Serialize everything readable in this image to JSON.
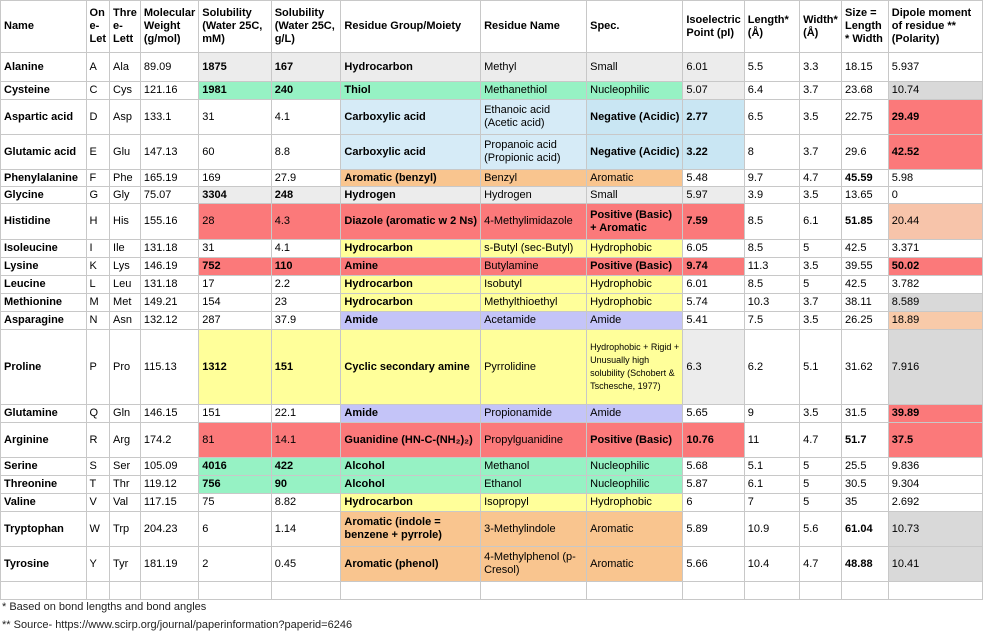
{
  "headers": [
    "Name",
    "On e-Let",
    "Thre e-Lett",
    "Molecular Weight (g/mol)",
    "Solubility (Water 25C, mM)",
    "Solubility (Water 25C, g/L)",
    "Residue Group/Moiety",
    "Residue Name",
    "Spec.",
    "Isoelectric Point (pI)",
    "Length* (Å)",
    "Width* (Å)",
    "Size = Length * Width",
    "Dipole moment of residue ** (Polarity)"
  ],
  "rows": [
    {
      "name": "Alanine",
      "one": "A",
      "three": "Ala",
      "mw": "89.09",
      "sol_mm": "1875",
      "sol_gl": "167",
      "group": "Hydrocarbon",
      "residue": "Methyl",
      "spec": "Small",
      "pi": "6.01",
      "len": "5.5",
      "wid": "3.3",
      "size": "18.15",
      "dipole": "5.937"
    },
    {
      "name": "Cysteine",
      "one": "C",
      "three": "Cys",
      "mw": "121.16",
      "sol_mm": "1981",
      "sol_gl": "240",
      "group": "Thiol",
      "residue": "Methanethiol",
      "spec": "Nucleophilic",
      "pi": "5.07",
      "len": "6.4",
      "wid": "3.7",
      "size": "23.68",
      "dipole": "10.74"
    },
    {
      "name": "Aspartic acid",
      "one": "D",
      "three": "Asp",
      "mw": "133.1",
      "sol_mm": "31",
      "sol_gl": "4.1",
      "group": "Carboxylic acid",
      "residue": "Ethanoic acid (Acetic acid)",
      "spec": "Negative (Acidic)",
      "pi": "2.77",
      "len": "6.5",
      "wid": "3.5",
      "size": "22.75",
      "dipole": "29.49"
    },
    {
      "name": "Glutamic acid",
      "one": "E",
      "three": "Glu",
      "mw": "147.13",
      "sol_mm": "60",
      "sol_gl": "8.8",
      "group": "Carboxylic acid",
      "residue": "Propanoic acid (Propionic acid)",
      "spec": "Negative (Acidic)",
      "pi": "3.22",
      "len": "8",
      "wid": "3.7",
      "size": "29.6",
      "dipole": "42.52"
    },
    {
      "name": "Phenylalanine",
      "one": "F",
      "three": "Phe",
      "mw": "165.19",
      "sol_mm": "169",
      "sol_gl": "27.9",
      "group": "Aromatic (benzyl)",
      "residue": "Benzyl",
      "spec": "Aromatic",
      "pi": "5.48",
      "len": "9.7",
      "wid": "4.7",
      "size": "45.59",
      "dipole": "5.98"
    },
    {
      "name": "Glycine",
      "one": "G",
      "three": "Gly",
      "mw": "75.07",
      "sol_mm": "3304",
      "sol_gl": "248",
      "group": "Hydrogen",
      "residue": "Hydrogen",
      "spec": "Small",
      "pi": "5.97",
      "len": "3.9",
      "wid": "3.5",
      "size": "13.65",
      "dipole": "0"
    },
    {
      "name": "Histidine",
      "one": "H",
      "three": "His",
      "mw": "155.16",
      "sol_mm": "28",
      "sol_gl": "4.3",
      "group": "Diazole (aromatic w 2 Ns)",
      "residue": "4-Methylimidazole",
      "spec": "Positive (Basic) + Aromatic",
      "pi": "7.59",
      "len": "8.5",
      "wid": "6.1",
      "size": "51.85",
      "dipole": "20.44"
    },
    {
      "name": "Isoleucine",
      "one": "I",
      "three": "Ile",
      "mw": "131.18",
      "sol_mm": "31",
      "sol_gl": "4.1",
      "group": "Hydrocarbon",
      "residue": "s-Butyl (sec-Butyl)",
      "spec": "Hydrophobic",
      "pi": "6.05",
      "len": "8.5",
      "wid": "5",
      "size": "42.5",
      "dipole": "3.371"
    },
    {
      "name": "Lysine",
      "one": "K",
      "three": "Lys",
      "mw": "146.19",
      "sol_mm": "752",
      "sol_gl": "110",
      "group": "Amine",
      "residue": "Butylamine",
      "spec": "Positive (Basic)",
      "pi": "9.74",
      "len": "11.3",
      "wid": "3.5",
      "size": "39.55",
      "dipole": "50.02"
    },
    {
      "name": "Leucine",
      "one": "L",
      "three": "Leu",
      "mw": "131.18",
      "sol_mm": "17",
      "sol_gl": "2.2",
      "group": "Hydrocarbon",
      "residue": "Isobutyl",
      "spec": "Hydrophobic",
      "pi": "6.01",
      "len": "8.5",
      "wid": "5",
      "size": "42.5",
      "dipole": "3.782"
    },
    {
      "name": "Methionine",
      "one": "M",
      "three": "Met",
      "mw": "149.21",
      "sol_mm": "154",
      "sol_gl": "23",
      "group": "Hydrocarbon",
      "residue": "Methylthioethyl",
      "spec": "Hydrophobic",
      "pi": "5.74",
      "len": "10.3",
      "wid": "3.7",
      "size": "38.11",
      "dipole": "8.589"
    },
    {
      "name": "Asparagine",
      "one": "N",
      "three": "Asn",
      "mw": "132.12",
      "sol_mm": "287",
      "sol_gl": "37.9",
      "group": "Amide",
      "residue": "Acetamide",
      "spec": "Amide",
      "pi": "5.41",
      "len": "7.5",
      "wid": "3.5",
      "size": "26.25",
      "dipole": "18.89"
    },
    {
      "name": "Proline",
      "one": "P",
      "three": "Pro",
      "mw": "115.13",
      "sol_mm": "1312",
      "sol_gl": "151",
      "group": "Cyclic secondary amine",
      "residue": "Pyrrolidine",
      "spec": "Hydrophobic + Rigid + Unusually high solubility (Schobert & Tschesche, 1977)",
      "pi": "6.3",
      "len": "6.2",
      "wid": "5.1",
      "size": "31.62",
      "dipole": "7.916"
    },
    {
      "name": "Glutamine",
      "one": "Q",
      "three": "Gln",
      "mw": "146.15",
      "sol_mm": "151",
      "sol_gl": "22.1",
      "group": "Amide",
      "residue": "Propionamide",
      "spec": "Amide",
      "pi": "5.65",
      "len": "9",
      "wid": "3.5",
      "size": "31.5",
      "dipole": "39.89"
    },
    {
      "name": "Arginine",
      "one": "R",
      "three": "Arg",
      "mw": "174.2",
      "sol_mm": "81",
      "sol_gl": "14.1",
      "group": "Guanidine (HN-C-(NH₂)₂)",
      "residue": "Propylguanidine",
      "spec": "Positive (Basic)",
      "pi": "10.76",
      "len": "11",
      "wid": "4.7",
      "size": "51.7",
      "dipole": "37.5"
    },
    {
      "name": "Serine",
      "one": "S",
      "three": "Ser",
      "mw": "105.09",
      "sol_mm": "4016",
      "sol_gl": "422",
      "group": "Alcohol",
      "residue": "Methanol",
      "spec": "Nucleophilic",
      "pi": "5.68",
      "len": "5.1",
      "wid": "5",
      "size": "25.5",
      "dipole": "9.836"
    },
    {
      "name": "Threonine",
      "one": "T",
      "three": "Thr",
      "mw": "119.12",
      "sol_mm": "756",
      "sol_gl": "90",
      "group": "Alcohol",
      "residue": "Ethanol",
      "spec": "Nucleophilic",
      "pi": "5.87",
      "len": "6.1",
      "wid": "5",
      "size": "30.5",
      "dipole": "9.304"
    },
    {
      "name": "Valine",
      "one": "V",
      "three": "Val",
      "mw": "117.15",
      "sol_mm": "75",
      "sol_gl": "8.82",
      "group": "Hydrocarbon",
      "residue": "Isopropyl",
      "spec": "Hydrophobic",
      "pi": "6",
      "len": "7",
      "wid": "5",
      "size": "35",
      "dipole": "2.692"
    },
    {
      "name": "Tryptophan",
      "one": "W",
      "three": "Trp",
      "mw": "204.23",
      "sol_mm": "6",
      "sol_gl": "1.14",
      "group": "Aromatic (indole = benzene + pyrrole)",
      "residue": "3-Methylindole",
      "spec": "Aromatic",
      "pi": "5.89",
      "len": "10.9",
      "wid": "5.6",
      "size": "61.04",
      "dipole": "10.73"
    },
    {
      "name": "Tyrosine",
      "one": "Y",
      "three": "Tyr",
      "mw": "181.19",
      "sol_mm": "2",
      "sol_gl": "0.45",
      "group": "Aromatic (phenol)",
      "residue": "4-Methylphenol (p-Cresol)",
      "spec": "Aromatic",
      "pi": "5.66",
      "len": "10.4",
      "wid": "4.7",
      "size": "48.88",
      "dipole": "10.41"
    }
  ],
  "cell_colors": {
    "gray": "#ececec",
    "green": "#96f2c4",
    "yellow": "#ffff9a",
    "blue": "#c9e6f3",
    "orange": "#f9c58f",
    "red": "#fb797a",
    "lavender": "#c4c4f8",
    "salmon": "#f7c4aa",
    "lightgray": "#d9d9d9"
  },
  "footnotes": {
    "note1": "* Based on bond lengths and bond angles",
    "note2": "** Source- https://www.scirp.org/journal/paperinformation?paperid=6246"
  }
}
